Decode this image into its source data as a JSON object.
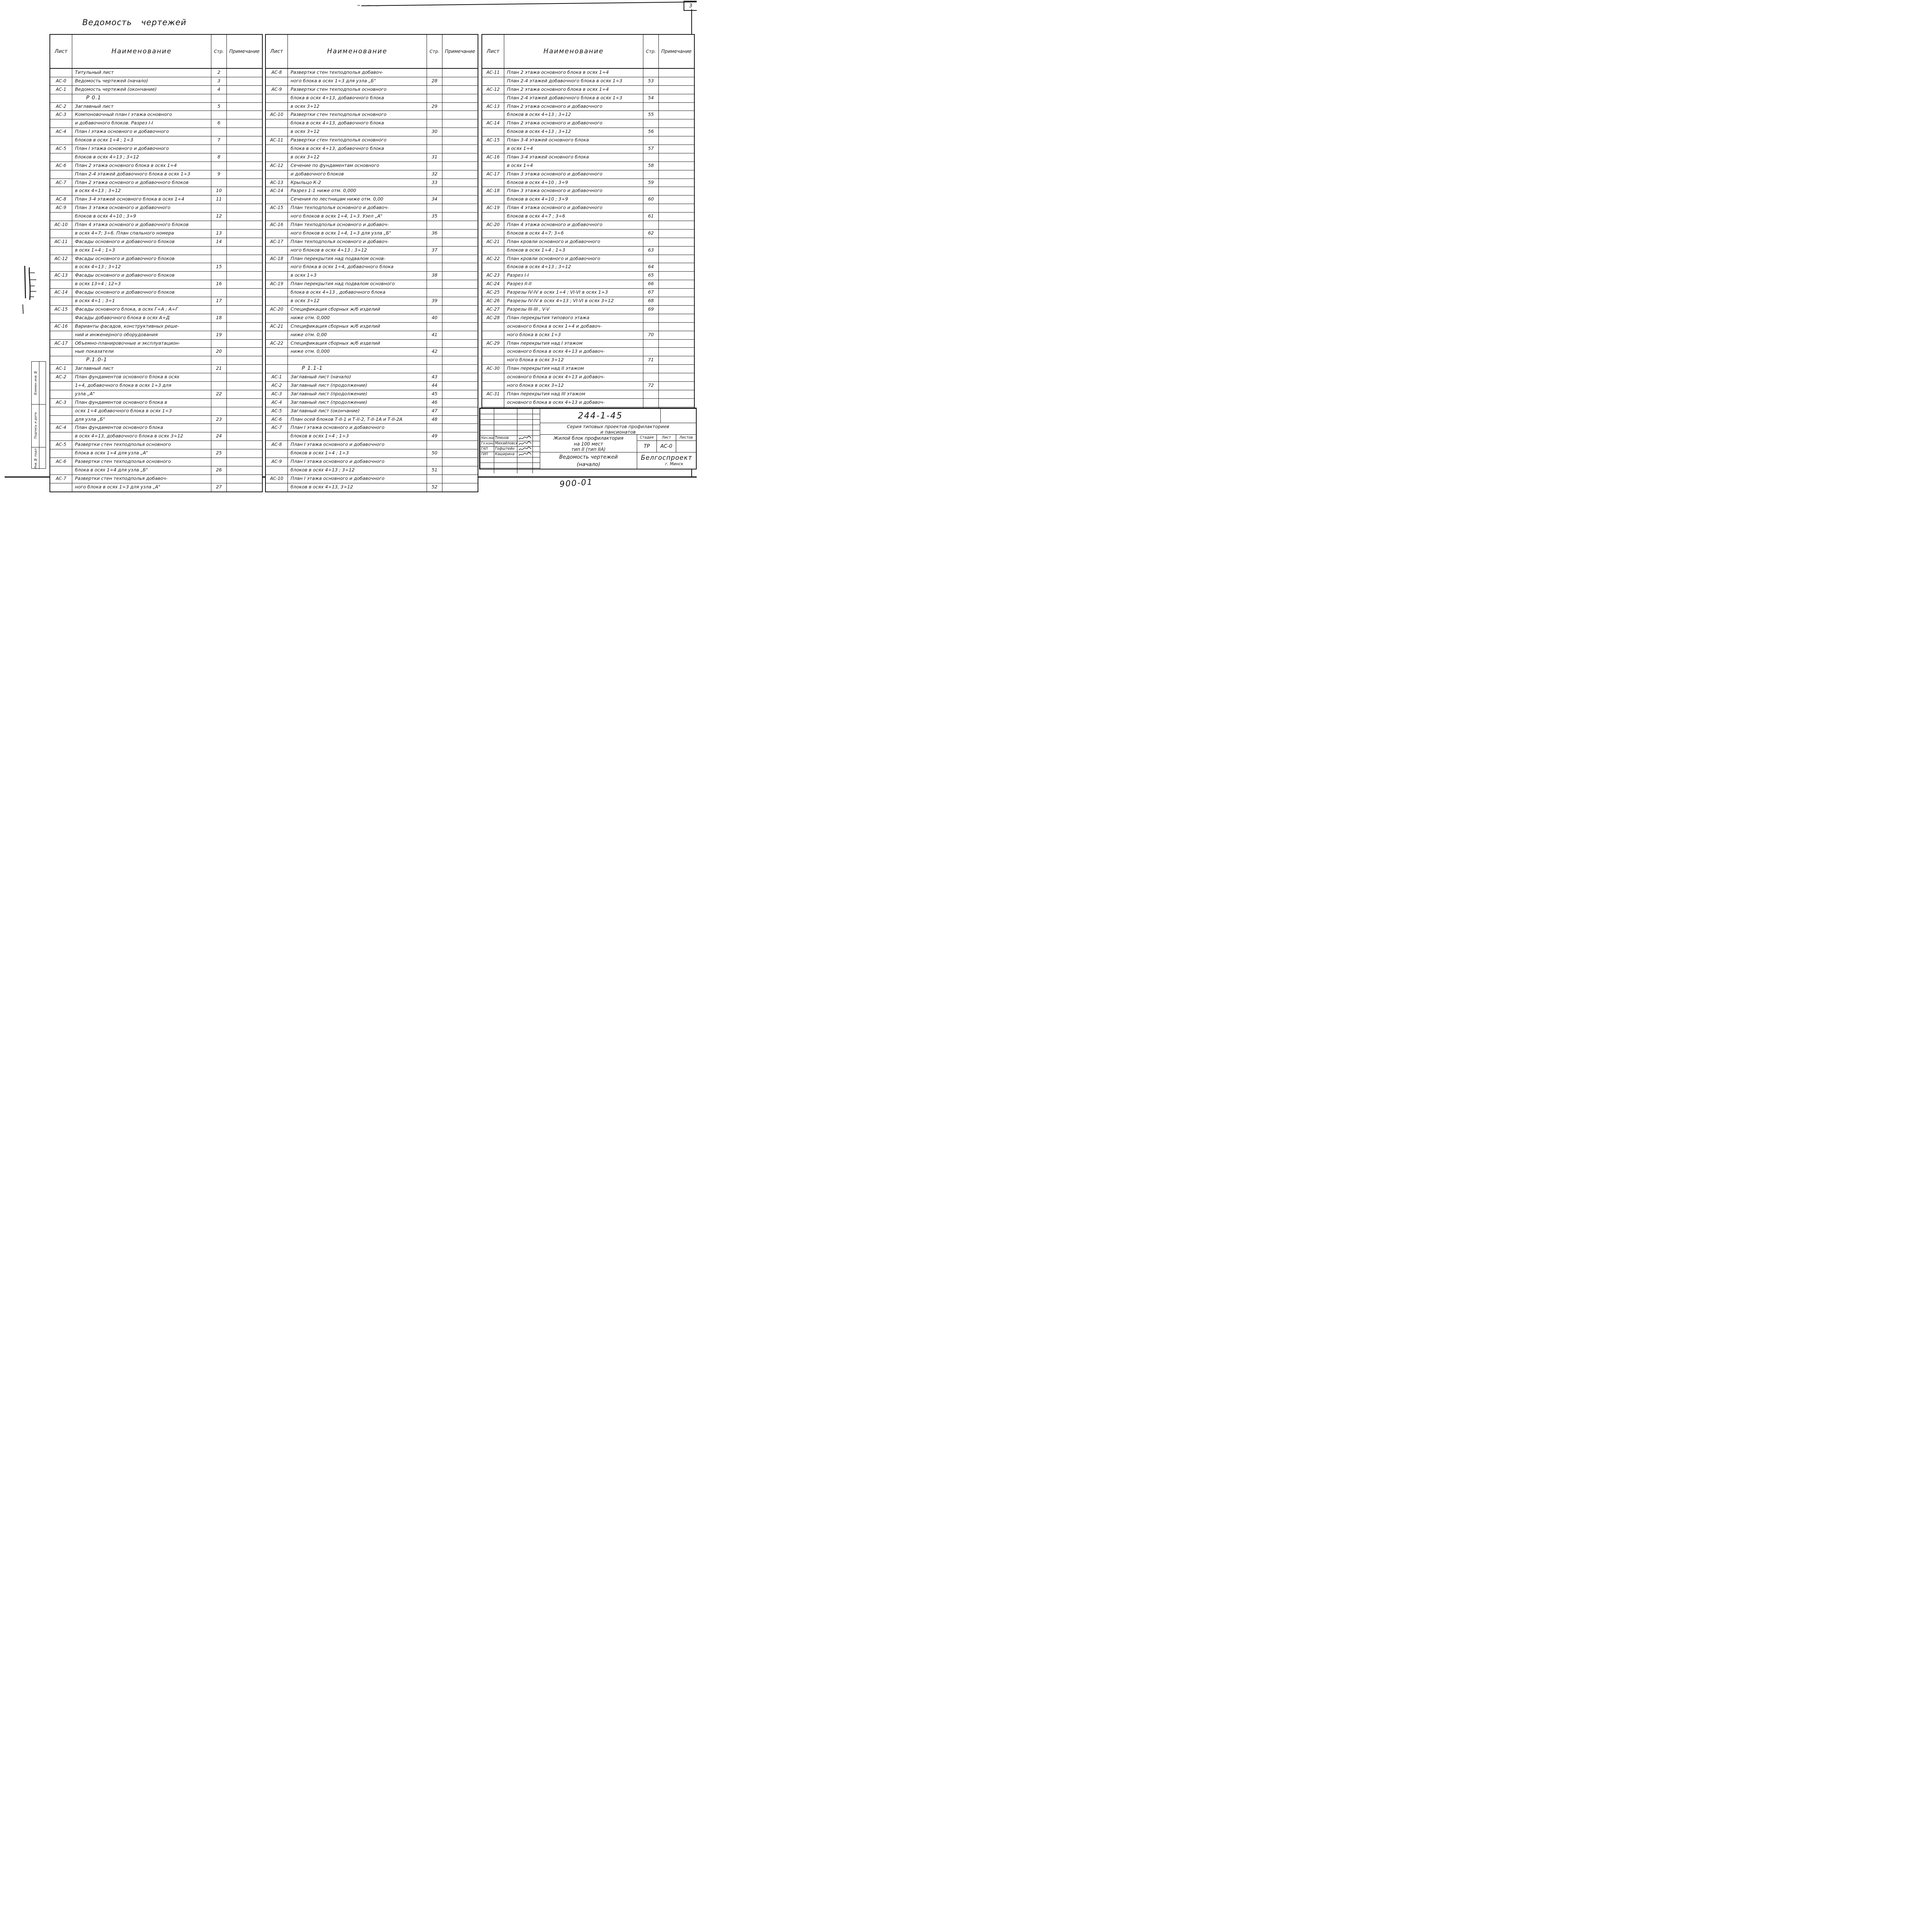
{
  "page": {
    "number": "3",
    "doc_number": "900-01",
    "title": "Ведомость чертежей"
  },
  "labels": {
    "sheet": "Лист",
    "name": "Наименование",
    "page": "Стр.",
    "note": "Примечание"
  },
  "margin_labels": [
    "Взамен инв.№",
    "Подпись и дата",
    "Инв.№ подл."
  ],
  "title_block": {
    "series_code": "244-1-45",
    "series_line1": "Серия типовых проектов профилакториев",
    "series_line2": "и пансионатов",
    "project_line1": "Жилой блок профилактория",
    "project_line2": "на 100 мест",
    "project_line3": "тип II (тип IIА)",
    "sheet_title_line1": "Ведомость чертежей",
    "sheet_title_line2": "(начало)",
    "stage_label": "Стадия",
    "sheet_label": "Лист",
    "sheets_label": "Листов",
    "stage": "ТР",
    "sheet": "АС-0",
    "sheets": "",
    "organization": "Белгоспроект",
    "city": "г. Минск",
    "staff": [
      {
        "role": "Нач.маст.",
        "name": "Темнов"
      },
      {
        "role": "Гл.констр.",
        "name": "Михайловский"
      },
      {
        "role": "ГАП",
        "name": "Гофштейн"
      },
      {
        "role": "ГИП",
        "name": "Каширина"
      }
    ]
  },
  "tables": [
    {
      "rows": [
        {
          "s": "",
          "n": "Титульный лист",
          "p": "2"
        },
        {
          "s": "АС-0",
          "n": "Ведомость чертежей (начало)",
          "p": "3"
        },
        {
          "s": "АС-1",
          "n": "Ведомость чертежей (окончание)",
          "p": "4"
        },
        {
          "sec": "Р 0.1"
        },
        {
          "s": "АС-2",
          "n": "Заглавный лист",
          "p": "5"
        },
        {
          "s": "АС-3",
          "n": "Компоновочный план I этажа основного",
          "p": ""
        },
        {
          "s": "",
          "n": "и добавочного блоков. Разрез I-I",
          "p": "6"
        },
        {
          "s": "АС-4",
          "n": "План I этажа основного и добавочного",
          "p": ""
        },
        {
          "s": "",
          "n": "блоков в осях 1÷4 ; 1÷3",
          "p": "7"
        },
        {
          "s": "АС-5",
          "n": "План I этажа основного и добавочного",
          "p": ""
        },
        {
          "s": "",
          "n": "блоков в осях 4÷13 ; 3÷12",
          "p": "8"
        },
        {
          "s": "АС-6",
          "n": "План 2 этажа основного блока в осях 1÷4",
          "p": ""
        },
        {
          "s": "",
          "n": "План 2-4 этажей добавочного блока в осях 1÷3",
          "p": "9"
        },
        {
          "s": "АС-7",
          "n": "План 2 этажа основного и добавочного блоков",
          "p": ""
        },
        {
          "s": "",
          "n": "в осях 4÷13 ; 3÷12",
          "p": "10"
        },
        {
          "s": "АС-8",
          "n": "План 3-4 этажей основного блока в осях 1÷4",
          "p": "11"
        },
        {
          "s": "АС-9",
          "n": "План 3 этажа основного и добавочного",
          "p": ""
        },
        {
          "s": "",
          "n": "блоков в осях 4÷10 ; 3÷9",
          "p": "12"
        },
        {
          "s": "АС-10",
          "n": "План 4 этажа основного и добавочного блоков",
          "p": ""
        },
        {
          "s": "",
          "n": "в осях 4÷7; 3÷6. План спального номера",
          "p": "13"
        },
        {
          "s": "АС-11",
          "n": "Фасады основного и добавочного блоков",
          "p": "14"
        },
        {
          "s": "",
          "n": "в осях 1÷4 ; 1÷3",
          "p": ""
        },
        {
          "s": "АС-12",
          "n": "Фасады основного и добавочного блоков",
          "p": ""
        },
        {
          "s": "",
          "n": "в осях 4÷13 ; 3÷12",
          "p": "15"
        },
        {
          "s": "АС-13",
          "n": "Фасады основного и добавочного блоков",
          "p": ""
        },
        {
          "s": "",
          "n": "в осях 13÷4 ; 12÷3",
          "p": "16"
        },
        {
          "s": "АС-14",
          "n": "Фасады основного и добавочного блоков",
          "p": ""
        },
        {
          "s": "",
          "n": "в осях 4÷1 ; 3÷1",
          "p": "17"
        },
        {
          "s": "АС-15",
          "n": "Фасады основного блока, в осях Г÷А ; А÷Г",
          "p": ""
        },
        {
          "s": "",
          "n": "Фасады добавочного блока в осях А÷Д",
          "p": "18"
        },
        {
          "s": "АС-16",
          "n": "Варианты фасадов, конструктивных реше-",
          "p": ""
        },
        {
          "s": "",
          "n": "ний и инженерного оборудования",
          "p": "19"
        },
        {
          "s": "АС-17",
          "n": "Объемно-планировочные и эксплуатацион-",
          "p": ""
        },
        {
          "s": "",
          "n": "ные показатели",
          "p": "20"
        },
        {
          "sec": "Р.1.0-1"
        },
        {
          "s": "АС-1",
          "n": "Заглавный лист",
          "p": "21"
        },
        {
          "s": "АС-2",
          "n": "План фундаментов основного блока в осях",
          "p": ""
        },
        {
          "s": "",
          "n": "1÷4, добавочного блока в осях 1÷3 для",
          "p": ""
        },
        {
          "s": "",
          "n": "узла „А\"",
          "p": "22"
        },
        {
          "s": "АС-3",
          "n": "План фундаментов основного блока в",
          "p": ""
        },
        {
          "s": "",
          "n": "осях 1÷4 добавочного блока в осях 1÷3",
          "p": ""
        },
        {
          "s": "",
          "n": "для узла „Б\"",
          "p": "23"
        },
        {
          "s": "АС-4",
          "n": "План фундаментов основного блока",
          "p": ""
        },
        {
          "s": "",
          "n": "в осях 4÷13, добавочного блока в осях 3÷12",
          "p": "24"
        },
        {
          "s": "АС-5",
          "n": "Развертки стен техподполья основного",
          "p": ""
        },
        {
          "s": "",
          "n": "блока в осях 1÷4 для узла „А\"",
          "p": "25"
        },
        {
          "s": "АС-6",
          "n": "Развертки стен техподполья основного",
          "p": ""
        },
        {
          "s": "",
          "n": "блока в осях 1÷4 для узла „Б\"",
          "p": "26"
        },
        {
          "s": "АС-7",
          "n": "Развертки стен техподполья добавоч-",
          "p": ""
        },
        {
          "s": "",
          "n": "ного блока в осях 1÷3 для узла „А\"",
          "p": "27"
        }
      ]
    },
    {
      "rows": [
        {
          "s": "АС-8",
          "n": "Развертки стен техподполья добавоч-",
          "p": ""
        },
        {
          "s": "",
          "n": "ного блока в осях 1÷3 для узла „Б\"",
          "p": "28"
        },
        {
          "s": "АС-9",
          "n": "Развертки стен техподполья основного",
          "p": ""
        },
        {
          "s": "",
          "n": "блока в осях 4÷13, добавочного блока",
          "p": ""
        },
        {
          "s": "",
          "n": "в осях 3÷12",
          "p": "29"
        },
        {
          "s": "АС-10",
          "n": "Развертки стен техподполья основного",
          "p": ""
        },
        {
          "s": "",
          "n": "блока в осях 4÷13, добавочного блока",
          "p": ""
        },
        {
          "s": "",
          "n": "в осях 3÷12",
          "p": "30"
        },
        {
          "s": "АС-11",
          "n": "Развертки стен техподполья основного",
          "p": ""
        },
        {
          "s": "",
          "n": "блока в осях 4÷13, добавочного блока",
          "p": ""
        },
        {
          "s": "",
          "n": "в осях 3÷12",
          "p": "31"
        },
        {
          "s": "АС-12",
          "n": "Сечение по фундаментам основного",
          "p": ""
        },
        {
          "s": "",
          "n": "и добавочного блоков",
          "p": "32"
        },
        {
          "s": "АС-13",
          "n": "Крыльцо К-2",
          "p": "33"
        },
        {
          "s": "АС-14",
          "n": "Разрез 1-1 ниже отм. 0,000",
          "p": ""
        },
        {
          "s": "",
          "n": "Сечения по лестницам ниже отм. 0,00",
          "p": "34"
        },
        {
          "s": "АС-15",
          "n": "План техподполья основного и добавоч-",
          "p": ""
        },
        {
          "s": "",
          "n": "ного блоков в осях 1÷4, 1÷3. Узел „А\"",
          "p": "35"
        },
        {
          "s": "АС-16",
          "n": "План техподполья основного и добавоч-",
          "p": ""
        },
        {
          "s": "",
          "n": "ного блоков в осях 1÷4, 1÷3 для узла „Б\"",
          "p": "36"
        },
        {
          "s": "АС-17",
          "n": "План техподполья основного и добавоч-",
          "p": ""
        },
        {
          "s": "",
          "n": "ного блоков в осях 4÷13 ; 3÷12",
          "p": "37"
        },
        {
          "s": "АС-18",
          "n": "План перекрытия над подвалом основ-",
          "p": ""
        },
        {
          "s": "",
          "n": "ного блока в осях 1÷4, добавочного блока",
          "p": ""
        },
        {
          "s": "",
          "n": "в осях 1÷3",
          "p": "38"
        },
        {
          "s": "АС-19",
          "n": "План перекрытия над подвалом основного",
          "p": ""
        },
        {
          "s": "",
          "n": "блока в осях 4÷13 , добавочного блока",
          "p": ""
        },
        {
          "s": "",
          "n": "в осях 3÷12",
          "p": "39"
        },
        {
          "s": "АС-20",
          "n": "Спецификация сборных ж/б изделий",
          "p": ""
        },
        {
          "s": "",
          "n": "ниже отм. 0,000",
          "p": "40"
        },
        {
          "s": "АС-21",
          "n": "Спецификация сборных ж/б изделий",
          "p": ""
        },
        {
          "s": "",
          "n": "ниже отм. 0,00",
          "p": "41"
        },
        {
          "s": "АС-22",
          "n": "Спецификация сборных ж/б изделий",
          "p": ""
        },
        {
          "s": "",
          "n": "ниже отм. 0,000",
          "p": "42"
        },
        {
          "s": "",
          "n": "",
          "p": ""
        },
        {
          "sec": "Р 1.1-1"
        },
        {
          "s": "АС-1",
          "n": "Заглавный лист (начало)",
          "p": "43"
        },
        {
          "s": "АС-2",
          "n": "Заглавный лист (продолжение)",
          "p": "44"
        },
        {
          "s": "АС-3",
          "n": "Заглавный лист (продолжение)",
          "p": "45"
        },
        {
          "s": "АС-4",
          "n": "Заглавный лист (продолжение)",
          "p": "46"
        },
        {
          "s": "АС-5",
          "n": "Заглавный лист (окончание)",
          "p": "47"
        },
        {
          "s": "АС-6",
          "n": "План осей блоков Т-II-1 и Т-II-2, Т-II-1А и Т-II-2А",
          "p": "48"
        },
        {
          "s": "АС-7",
          "n": "План I этажа основного и добавочного",
          "p": ""
        },
        {
          "s": "",
          "n": "блоков в осях 1÷4 ; 1÷3",
          "p": "49"
        },
        {
          "s": "АС-8",
          "n": "План I этажа основного и добавочного",
          "p": ""
        },
        {
          "s": "",
          "n": "блоков в осях 1÷4 ; 1÷3",
          "p": "50"
        },
        {
          "s": "АС-9",
          "n": "План I этажа основного и добавочного",
          "p": ""
        },
        {
          "s": "",
          "n": "блоков в осях 4÷13 ; 3÷12",
          "p": "51"
        },
        {
          "s": "АС-10",
          "n": "План I этажа основного и добавочного",
          "p": ""
        },
        {
          "s": "",
          "n": "блоков в осях 4÷13, 3÷12",
          "p": "52"
        }
      ]
    },
    {
      "rows": [
        {
          "s": "АС-11",
          "n": "План 2 этажа основного блока в осях 1÷4",
          "p": ""
        },
        {
          "s": "",
          "n": "План 2-4 этажей добавочного блока в осях 1÷3",
          "p": "53"
        },
        {
          "s": "АС-12",
          "n": "План 2 этажа основного блока в осях 1÷4",
          "p": ""
        },
        {
          "s": "",
          "n": "План 2-4 этажей добавочного блока в осях 1÷3",
          "p": "54"
        },
        {
          "s": "АС-13",
          "n": "План 2 этажа основного и добавочного",
          "p": ""
        },
        {
          "s": "",
          "n": "блоков в осях 4÷13 ; 3÷12",
          "p": "55"
        },
        {
          "s": "АС-14",
          "n": "План 2 этажа основного и добавочного",
          "p": ""
        },
        {
          "s": "",
          "n": "блоков в осях 4÷13 ; 3÷12",
          "p": "56"
        },
        {
          "s": "АС-15",
          "n": "План 3-4 этажей основного блока",
          "p": ""
        },
        {
          "s": "",
          "n": "в осях 1÷4",
          "p": "57"
        },
        {
          "s": "АС-16",
          "n": "План 3-4 этажей основного блока",
          "p": ""
        },
        {
          "s": "",
          "n": "в осях 1÷4",
          "p": "58"
        },
        {
          "s": "АС-17",
          "n": "План 3 этажа основного и добавочного",
          "p": ""
        },
        {
          "s": "",
          "n": "блоков в осях 4÷10 ; 3÷9",
          "p": "59"
        },
        {
          "s": "АС-18",
          "n": "План 3 этажа основного и добавочного",
          "p": ""
        },
        {
          "s": "",
          "n": "блоков в осях 4÷10 ; 3÷9",
          "p": "60"
        },
        {
          "s": "АС-19",
          "n": "План 4 этажа основного и добавочного",
          "p": ""
        },
        {
          "s": "",
          "n": "блоков в осях 4÷7 ; 3÷6",
          "p": "61"
        },
        {
          "s": "АС-20",
          "n": "План 4 этажа основного и добавочного",
          "p": ""
        },
        {
          "s": "",
          "n": "блоков в осях 4÷7; 3÷6",
          "p": "62"
        },
        {
          "s": "АС-21",
          "n": "План кровли основного и добавочного",
          "p": ""
        },
        {
          "s": "",
          "n": "блоков в осях 1÷4 ; 1÷3",
          "p": "63"
        },
        {
          "s": "АС-22",
          "n": "План кровли основного и добавочного",
          "p": ""
        },
        {
          "s": "",
          "n": "блоков в осях 4÷13 ; 3÷12",
          "p": "64"
        },
        {
          "s": "АС-23",
          "n": "Разрез I-I",
          "p": "65"
        },
        {
          "s": "АС-24",
          "n": "Разрез II-II",
          "p": "66"
        },
        {
          "s": "АС-25",
          "n": "Разрезы IV-IV в осях 1÷4 ; VI-VI в осях 1÷3",
          "p": "67"
        },
        {
          "s": "АС-26",
          "n": "Разрезы IV-IV в осях 4÷13 ; VI-VI в осях 3÷12",
          "p": "68"
        },
        {
          "s": "АС-27",
          "n": "Разрезы III-III , V-V",
          "p": "69"
        },
        {
          "s": "АС-28",
          "n": "План перекрытия типового этажа",
          "p": ""
        },
        {
          "s": "",
          "n": "основного блока в осях 1÷4 и добавоч-",
          "p": ""
        },
        {
          "s": "",
          "n": "ного блока в осях 1÷3",
          "p": "70"
        },
        {
          "s": "АС-29",
          "n": "План перекрытия над I этажом",
          "p": ""
        },
        {
          "s": "",
          "n": "основного блока в осях 4÷13 и добавоч-",
          "p": ""
        },
        {
          "s": "",
          "n": "ного блока в осях 3÷12",
          "p": "71"
        },
        {
          "s": "АС-30",
          "n": "План перекрытия над II этажом",
          "p": ""
        },
        {
          "s": "",
          "n": "основного блока в осях 4÷13 и добавоч-",
          "p": ""
        },
        {
          "s": "",
          "n": "ного блока в осях 3÷12",
          "p": "72"
        },
        {
          "s": "АС-31",
          "n": "План перекрытия над III этажом",
          "p": ""
        },
        {
          "s": "",
          "n": "основного блока в осях 4÷13 и добавоч-",
          "p": ""
        },
        {
          "s": "",
          "n": "ного блока в осях 3÷12",
          "p": "73."
        }
      ]
    }
  ]
}
